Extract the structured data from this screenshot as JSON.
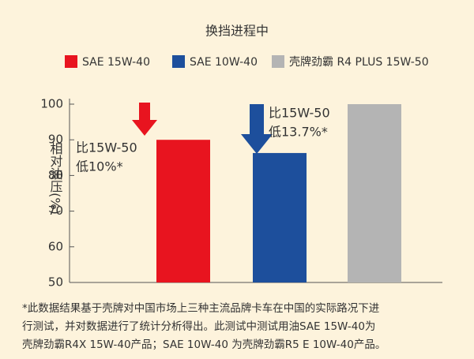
{
  "chart_data": {
    "type": "bar",
    "title": "换挡进程中",
    "y_label": "相对油压(%)",
    "series": [
      {
        "name": "SAE 15W-40",
        "color": "#e8141f",
        "values": [
          90
        ]
      },
      {
        "name": "SAE 10W-40",
        "color": "#1d4f9c",
        "values": [
          86.3
        ]
      },
      {
        "name": "壳牌劲霸 R4 PLUS 15W-50",
        "color": "#b4b4b4",
        "values": [
          100
        ]
      }
    ],
    "ylim": [
      50,
      100
    ],
    "yticks": [
      50,
      60,
      70,
      80,
      90,
      100
    ],
    "grid": false,
    "annotations": [
      {
        "lines": [
          "比15W-50",
          "低10%*"
        ]
      },
      {
        "lines": [
          "比15W-50",
          "低13.7%*"
        ]
      }
    ],
    "footnote": [
      "*此数据结果基于壳牌对中国市场上三种主流品牌卡车在中国的实际路况下进",
      "行测试，并对数据进行了统计分析得出。此测试中测试用油SAE 15W-40为",
      "壳牌劲霸R4X 15W-40产品；SAE 10W-40 为壳牌劲霸R5 E 10W-40产品。"
    ]
  }
}
